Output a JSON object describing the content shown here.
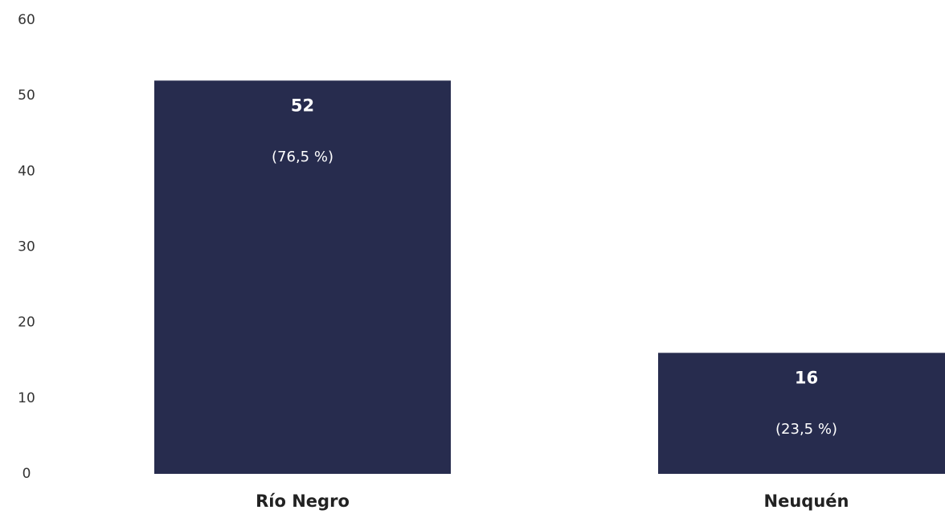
{
  "chart_data": {
    "type": "bar",
    "categories": [
      "Río Negro",
      "Neuquén"
    ],
    "values": [
      52,
      16
    ],
    "value_labels": [
      "52",
      "16"
    ],
    "percent_labels": [
      "(76,5 %)",
      "(23,5 %)"
    ],
    "yticks": [
      "0",
      "10",
      "20",
      "30",
      "40",
      "50",
      "60"
    ],
    "ylim": [
      0,
      60
    ],
    "title": "",
    "xlabel": "",
    "ylabel": "",
    "grid": false,
    "legend": "none",
    "colors": {
      "bar": "#272c4e"
    }
  }
}
